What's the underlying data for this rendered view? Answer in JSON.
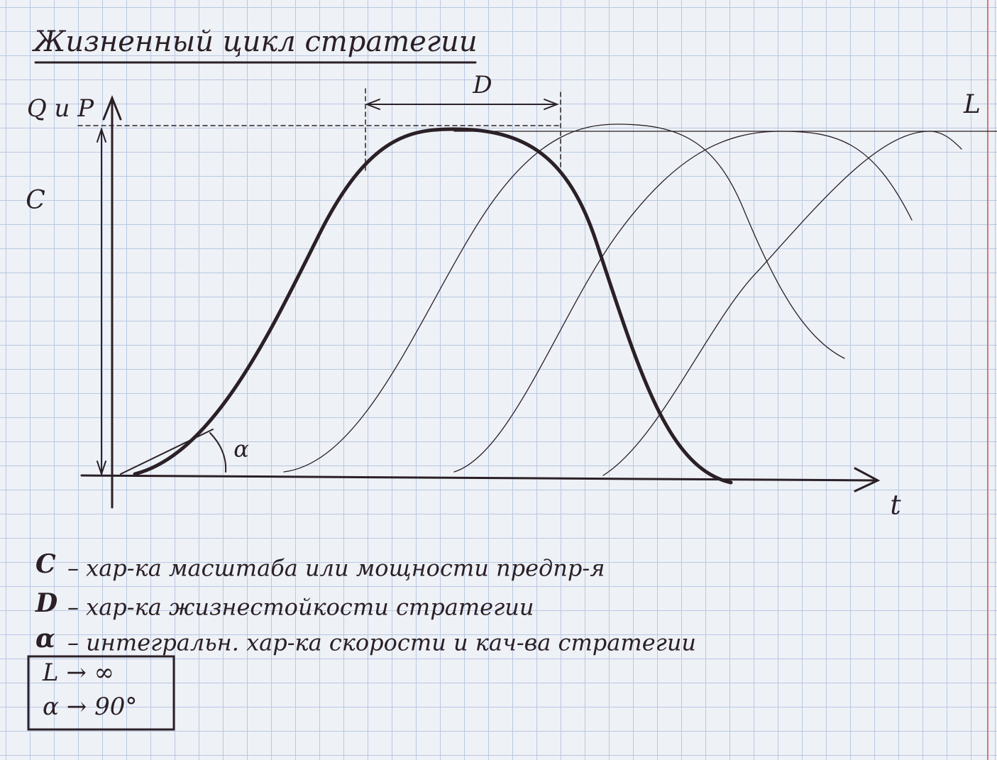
{
  "header": {
    "title": "Жизненный цикл стратегии"
  },
  "diagram": {
    "y_axis_label": "Q и P",
    "x_axis_label": "t",
    "scale_label": "C",
    "duration_label": "D",
    "limit_label": "L",
    "angle_label": "α"
  },
  "legend": [
    {
      "symbol": "C",
      "text": "– хар-ка масштаба или мощности предпр-я"
    },
    {
      "symbol": "D",
      "text": "– хар-ка жизнестойкости стратегии"
    },
    {
      "symbol": "α",
      "text": "– интегральн. хар-ка скорости и кач-ва стратегии"
    }
  ],
  "box": {
    "lines": [
      "L → ∞",
      "α → 90°"
    ]
  }
}
